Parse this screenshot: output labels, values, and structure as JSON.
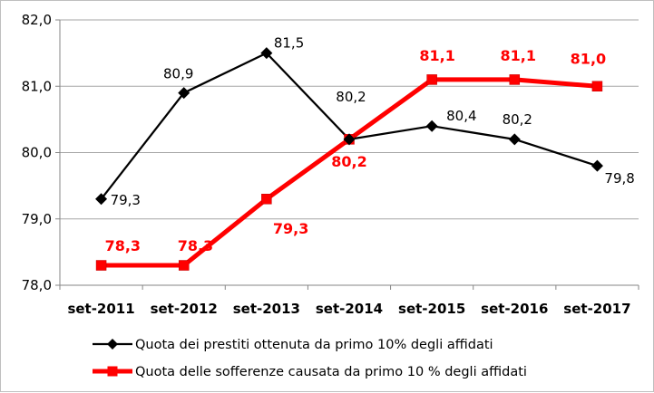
{
  "chart_data": {
    "type": "line",
    "title": "",
    "xlabel": "",
    "ylabel": "",
    "categories": [
      "set-2011",
      "set-2012",
      "set-2013",
      "set-2014",
      "set-2015",
      "set-2016",
      "set-2017"
    ],
    "ylim": [
      78.0,
      82.0
    ],
    "yticks": [
      78.0,
      79.0,
      80.0,
      81.0,
      82.0
    ],
    "ytick_labels": [
      "78,0",
      "79,0",
      "80,0",
      "81,0",
      "82,0"
    ],
    "grid": "horizontal",
    "legend_position": "bottom",
    "series": [
      {
        "name": "Quota dei prestiti ottenuta da primo 10% degli affidati",
        "color": "#000000",
        "marker": "diamond",
        "values": [
          79.3,
          80.9,
          81.5,
          80.2,
          80.4,
          80.2,
          79.8
        ],
        "labels": [
          "79,3",
          "80,9",
          "81,5",
          "80,2",
          "80,4",
          "80,2",
          "79,8"
        ],
        "label_style": "normal"
      },
      {
        "name": "Quota delle sofferenze causata da primo 10 % degli affidati",
        "color": "#ff0000",
        "marker": "square",
        "values": [
          78.3,
          78.3,
          79.3,
          80.2,
          81.1,
          81.1,
          81.0
        ],
        "labels": [
          "78,3",
          "78,3",
          "79,3",
          "80,2",
          "81,1",
          "81,1",
          "81,0"
        ],
        "label_style": "bold"
      }
    ]
  }
}
